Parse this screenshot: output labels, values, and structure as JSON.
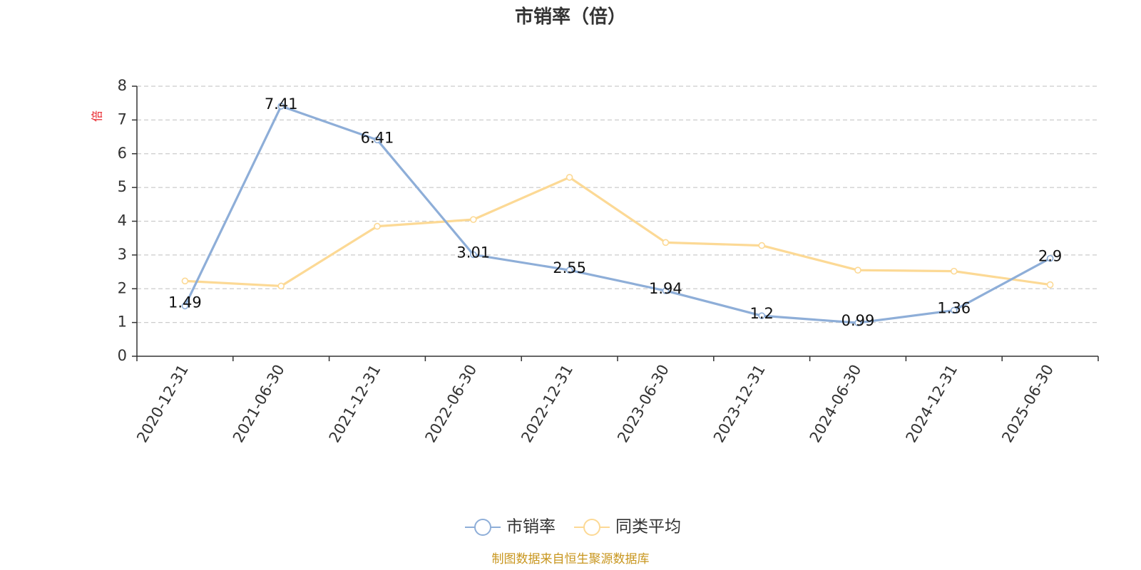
{
  "chart_data": {
    "type": "line",
    "title": "市销率（倍）",
    "ylabel": "倍",
    "ylim": [
      0,
      8
    ],
    "yticks": [
      0,
      1,
      2,
      3,
      4,
      5,
      6,
      7,
      8
    ],
    "grid": true,
    "legend_position": "bottom",
    "categories": [
      "2020-12-31",
      "2021-06-30",
      "2021-12-31",
      "2022-06-30",
      "2022-12-31",
      "2023-06-30",
      "2023-12-31",
      "2024-06-30",
      "2024-12-31",
      "2025-06-30"
    ],
    "series": [
      {
        "name": "市销率",
        "color": "#8eaed8",
        "values": [
          1.49,
          7.41,
          6.41,
          3.01,
          2.55,
          1.94,
          1.2,
          0.99,
          1.36,
          2.9
        ],
        "labels": [
          "1.49",
          "7.41",
          "6.41",
          "3.01",
          "2.55",
          "1.94",
          "1.2",
          "0.99",
          "1.36",
          "2.9"
        ]
      },
      {
        "name": "同类平均",
        "color": "#fcd995",
        "values": [
          2.23,
          2.08,
          3.85,
          4.05,
          5.3,
          3.37,
          3.28,
          2.55,
          2.52,
          2.12
        ]
      }
    ],
    "source": "制图数据来自恒生聚源数据库"
  }
}
